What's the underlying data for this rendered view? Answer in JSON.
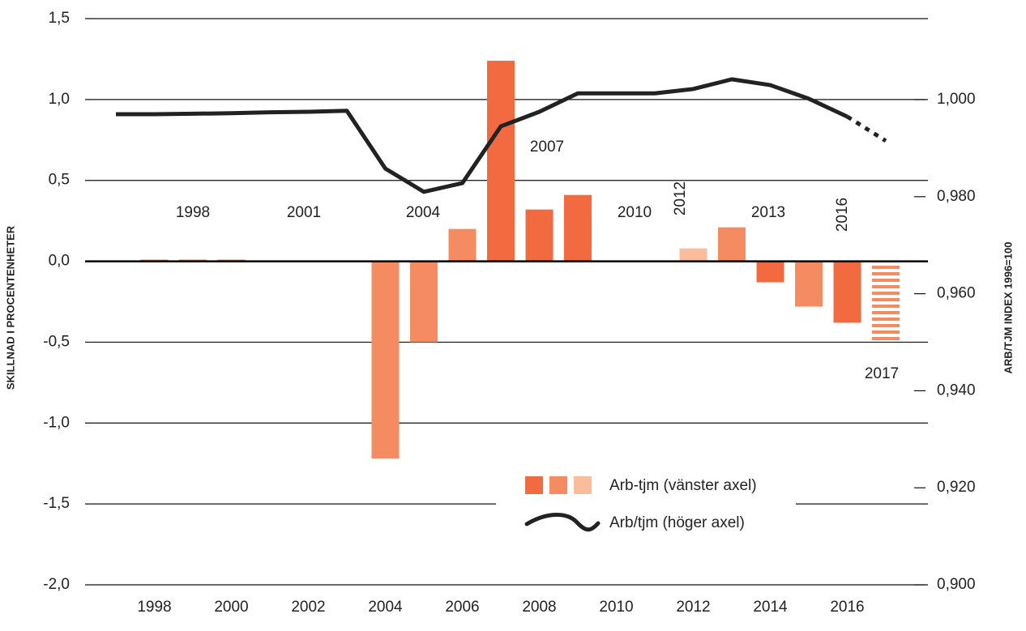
{
  "chart_data": {
    "type": "bar-line",
    "y_label": "SKILLNAD I PROCENTENHETER",
    "y2_label": "ARB/TJM INDEX 1996=100",
    "categories": [
      null,
      "1998",
      null,
      "2000",
      null,
      "2002",
      null,
      "2004",
      null,
      "2006",
      null,
      "2008",
      null,
      "2010",
      null,
      "2012",
      null,
      "2014",
      null,
      "2016",
      null
    ],
    "ylim": [
      -2.0,
      1.5
    ],
    "yticks": [
      {
        "value": 1.5,
        "label": "1,5"
      },
      {
        "value": 1.0,
        "label": "1,0"
      },
      {
        "value": 0.5,
        "label": "0,5"
      },
      {
        "value": 0.0,
        "label": "0,0"
      },
      {
        "value": -0.5,
        "label": "-0,5"
      },
      {
        "value": -1.0,
        "label": "-1,0"
      },
      {
        "value": -1.5,
        "label": "-1,5"
      },
      {
        "value": -2.0,
        "label": "-2,0"
      }
    ],
    "y2lim": [
      0.9,
      1.0167
    ],
    "y2ticks": [
      {
        "value": 1.0,
        "label": "1,000"
      },
      {
        "value": 0.98,
        "label": "0,980"
      },
      {
        "value": 0.96,
        "label": "0,960"
      },
      {
        "value": 0.94,
        "label": "0,940"
      },
      {
        "value": 0.92,
        "label": "0,920"
      },
      {
        "value": 0.9,
        "label": "0,900"
      }
    ],
    "grid": true,
    "series": [
      {
        "name": "Arb-tjm (vänster axel)",
        "kind": "bar",
        "legend_colors": [
          "#f26a3f",
          "#f48b61",
          "#f9bd9c"
        ],
        "values": [
          null,
          0.01,
          0.01,
          0.01,
          0.005,
          0.005,
          0.005,
          -1.22,
          -0.5,
          0.2,
          1.24,
          0.32,
          0.41,
          0,
          0,
          0.08,
          0.21,
          -0.13,
          -0.28,
          -0.38,
          -0.5
        ],
        "colors": [
          null,
          "#f26a3f",
          "#f26a3f",
          "#f26a3f",
          "#f9bd9c",
          "#f9bd9c",
          "#f9bd9c",
          "#f48b61",
          "#f48b61",
          "#f48b61",
          "#f26a3f",
          "#f26a3f",
          "#f26a3f",
          "#f26a3f",
          "#f26a3f",
          "#f9bd9c",
          "#f48b61",
          "#f26a3f",
          "#f48b61",
          "#f26a3f",
          "#f48b61"
        ],
        "striped": [
          false,
          false,
          false,
          false,
          false,
          false,
          false,
          false,
          false,
          false,
          false,
          false,
          false,
          false,
          false,
          false,
          false,
          false,
          false,
          false,
          true
        ]
      },
      {
        "name": "Arb/tjm (höger axel)",
        "kind": "line",
        "axis": "y2",
        "color": "#222222",
        "values": [
          0.997,
          0.997,
          0.9971,
          0.9972,
          0.9974,
          0.9975,
          0.9977,
          0.9858,
          0.981,
          0.9828,
          0.9945,
          0.9975,
          1.0013,
          1.0013,
          1.0013,
          1.0022,
          1.0042,
          1.003,
          1.0002,
          0.9965,
          0.9915
        ],
        "dashed": [
          false,
          false,
          false,
          false,
          false,
          false,
          false,
          false,
          false,
          false,
          false,
          false,
          false,
          false,
          false,
          false,
          false,
          false,
          false,
          false,
          true
        ]
      }
    ],
    "annotations": [
      "1998",
      "2001",
      "2004",
      "2007",
      "2010",
      "2012",
      "2013",
      "2016",
      "2017"
    ]
  }
}
